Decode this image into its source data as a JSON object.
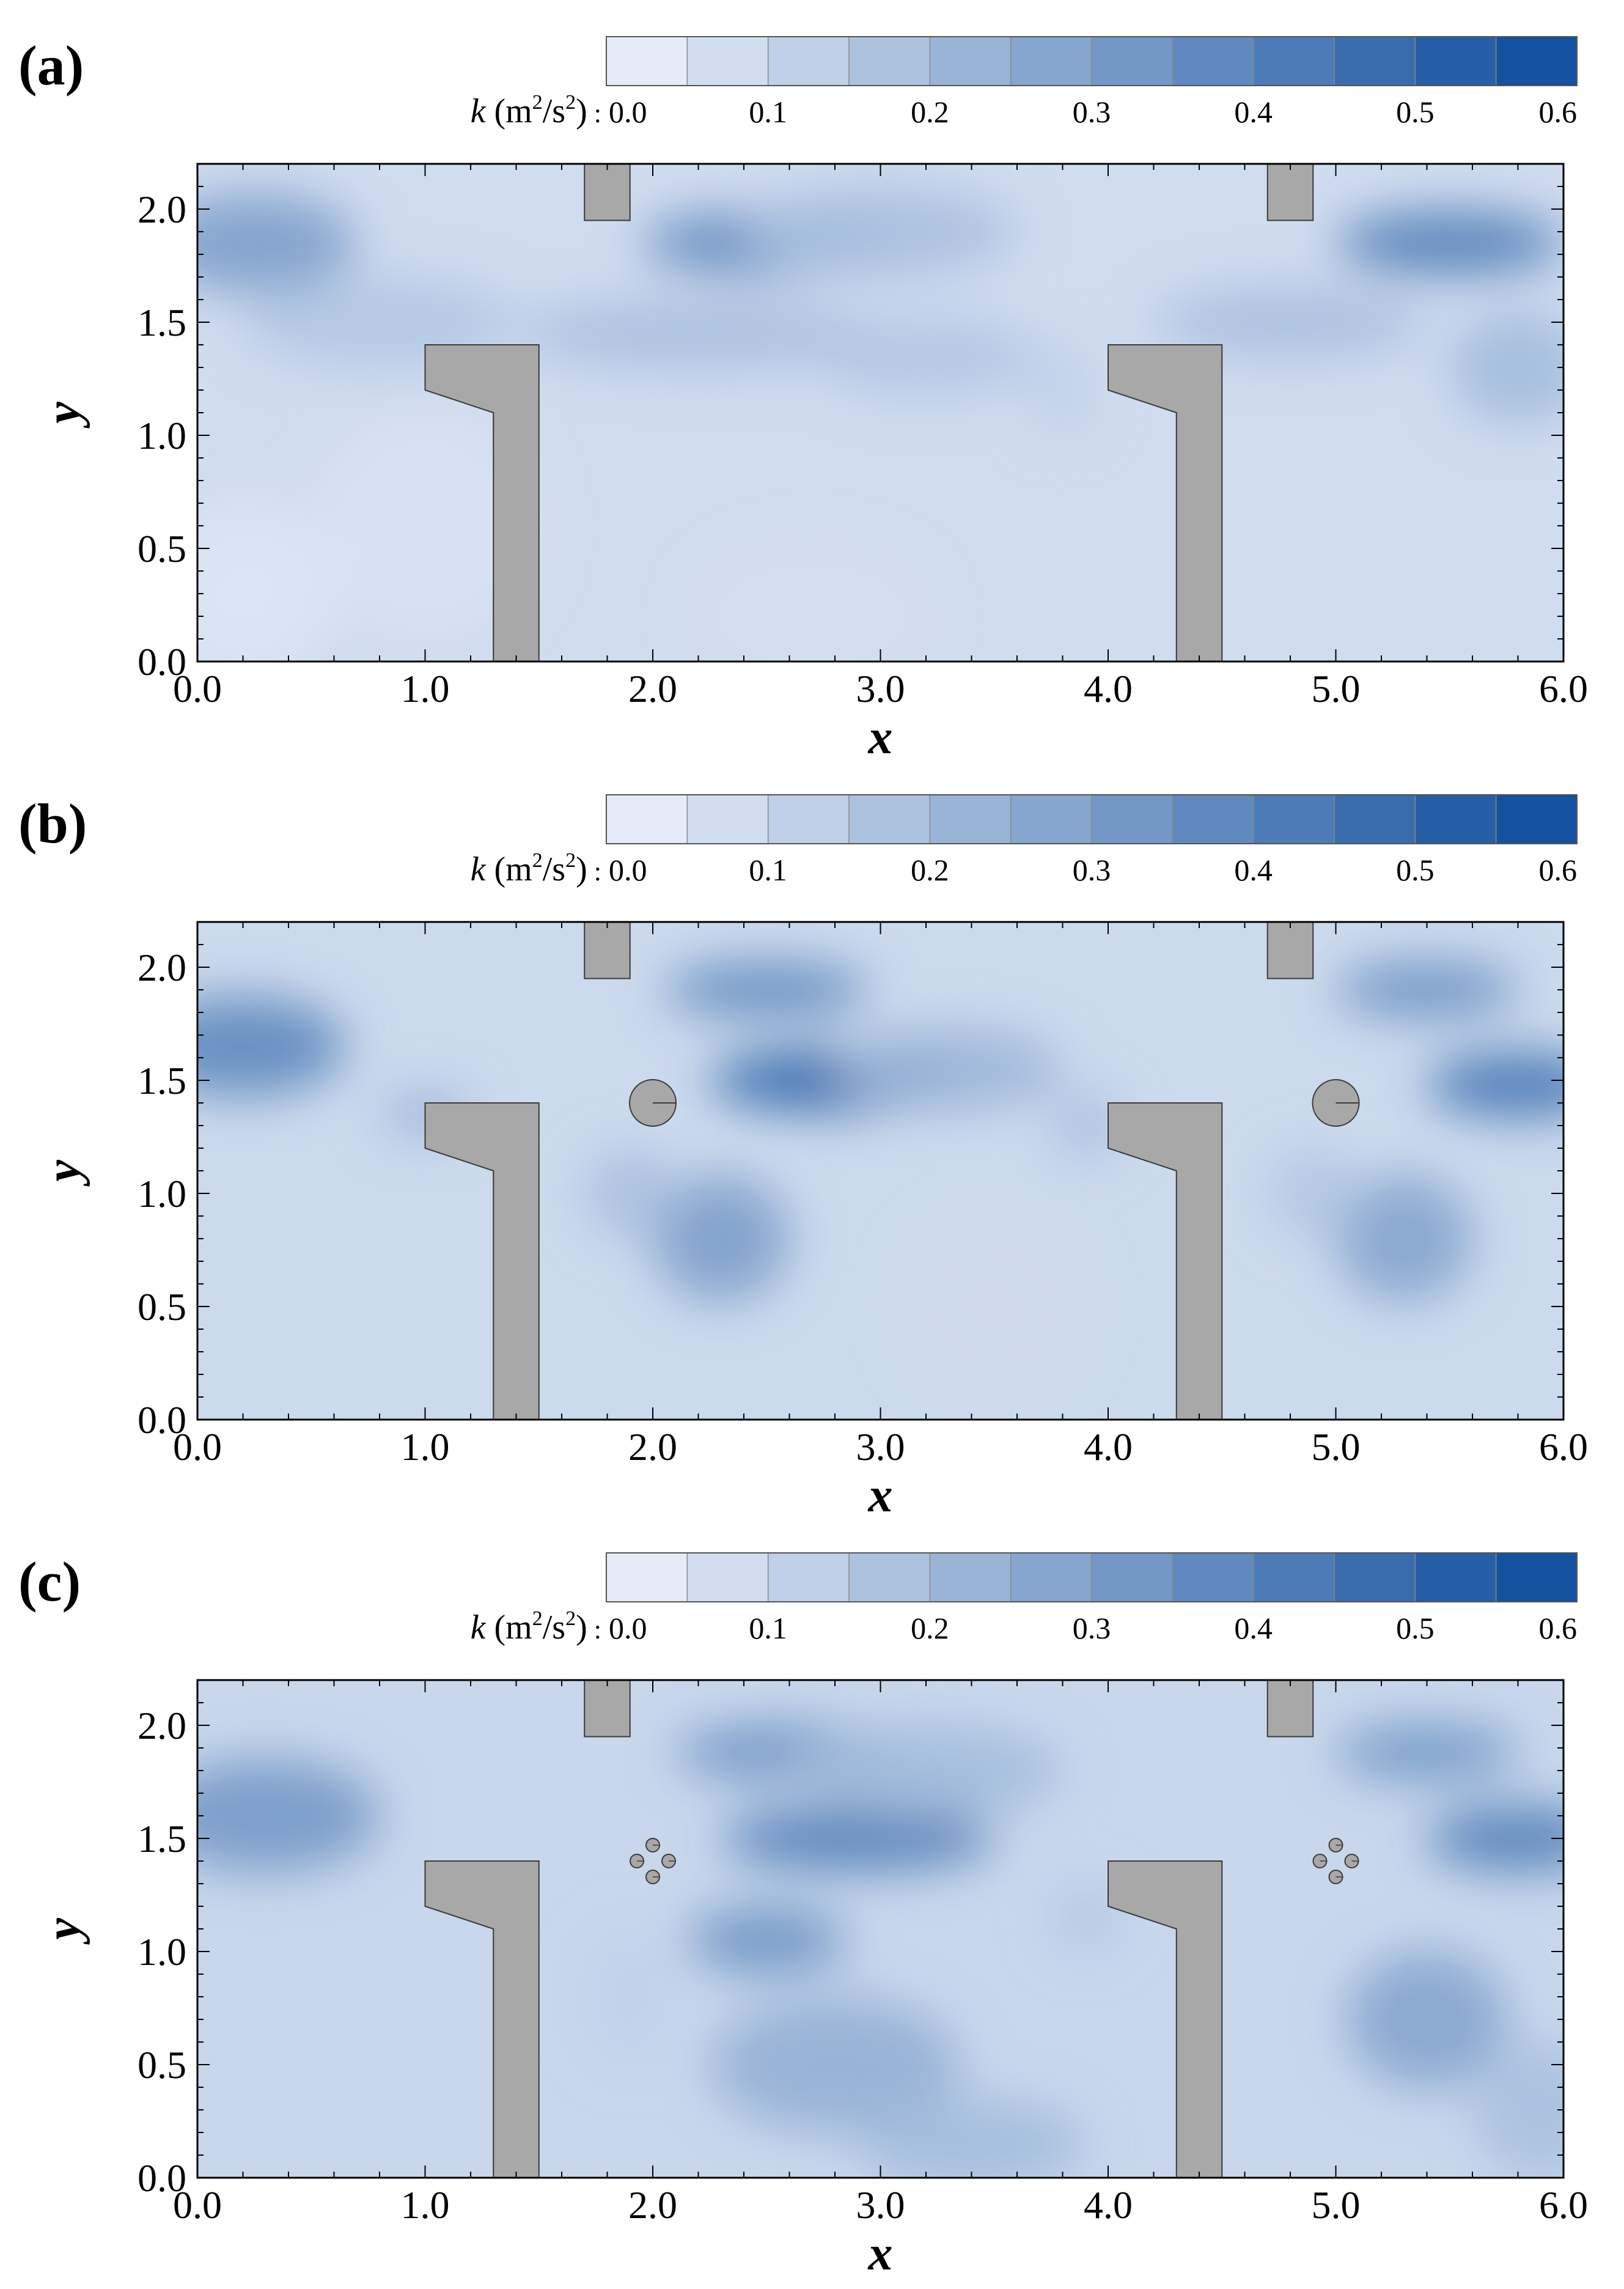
{
  "colors": {
    "cmap_low": "#eef3fc",
    "cmap_high": "#0b4a9a",
    "obstacle_fill": "#a8a8a8",
    "obstacle_stroke": "#3a3a3a",
    "axes": "#000000"
  },
  "chart_data": [
    {
      "type": "heatmap",
      "panel_label": "(a)",
      "colorbar": {
        "title": "k (m²/s²) :",
        "title_parts": {
          "symbol": "k",
          "unit_open": "(m",
          "unit_exp1": "2",
          "unit_mid": "/s",
          "unit_exp2": "2",
          "unit_close": ")",
          "sep": " :"
        },
        "range": [
          0.0,
          0.6
        ],
        "levels": 12,
        "ticks": [
          0.0,
          0.1,
          0.2,
          0.3,
          0.4,
          0.5,
          0.6
        ],
        "tick_labels": [
          "0.0",
          "0.1",
          "0.2",
          "0.3",
          "0.4",
          "0.5",
          "0.6"
        ]
      },
      "xlabel": "x",
      "ylabel": "y",
      "xlim": [
        0.0,
        6.0
      ],
      "ylim": [
        0.0,
        2.2
      ],
      "x_ticks": [
        "0.0",
        "1.0",
        "2.0",
        "3.0",
        "4.0",
        "5.0",
        "6.0"
      ],
      "y_ticks": [
        "0.0",
        "0.5",
        "1.0",
        "1.5",
        "2.0"
      ],
      "background_k": 0.08,
      "obstacles": {
        "groynes_x": [
          1.0,
          4.0
        ],
        "top_blocks_x": [
          1.7,
          4.7
        ],
        "device": "none",
        "device_x": []
      },
      "field_features": [
        {
          "x": 0.25,
          "y": 1.85,
          "k": 0.3,
          "sx": 0.45,
          "sy": 0.22
        },
        {
          "x": 0.8,
          "y": 1.5,
          "k": 0.16,
          "sx": 0.6,
          "sy": 0.2
        },
        {
          "x": 2.5,
          "y": 1.85,
          "k": 0.38,
          "sx": 0.55,
          "sy": 0.14
        },
        {
          "x": 3.0,
          "y": 1.9,
          "k": 0.18,
          "sx": 0.6,
          "sy": 0.2
        },
        {
          "x": 2.2,
          "y": 1.45,
          "k": 0.18,
          "sx": 0.8,
          "sy": 0.16
        },
        {
          "x": 3.2,
          "y": 1.35,
          "k": 0.16,
          "sx": 0.5,
          "sy": 0.18
        },
        {
          "x": 5.5,
          "y": 1.85,
          "k": 0.42,
          "sx": 0.5,
          "sy": 0.14
        },
        {
          "x": 5.8,
          "y": 1.3,
          "k": 0.2,
          "sx": 0.3,
          "sy": 0.25
        },
        {
          "x": 4.8,
          "y": 1.5,
          "k": 0.18,
          "sx": 0.6,
          "sy": 0.16
        },
        {
          "x": 3.8,
          "y": 1.2,
          "k": 0.12,
          "sx": 0.15,
          "sy": 0.2
        },
        {
          "x": 1.0,
          "y": 0.6,
          "k": 0.06,
          "sx": 0.5,
          "sy": 0.5
        },
        {
          "x": 2.7,
          "y": 0.2,
          "k": 0.07,
          "sx": 0.5,
          "sy": 0.3
        },
        {
          "x": 0.2,
          "y": 0.3,
          "k": 0.05,
          "sx": 0.4,
          "sy": 0.4
        }
      ]
    },
    {
      "type": "heatmap",
      "panel_label": "(b)",
      "colorbar": {
        "title": "k (m²/s²) :",
        "title_parts": {
          "symbol": "k",
          "unit_open": "(m",
          "unit_exp1": "2",
          "unit_mid": "/s",
          "unit_exp2": "2",
          "unit_close": ")",
          "sep": " :"
        },
        "range": [
          0.0,
          0.6
        ],
        "levels": 12,
        "ticks": [
          0.0,
          0.1,
          0.2,
          0.3,
          0.4,
          0.5,
          0.6
        ],
        "tick_labels": [
          "0.0",
          "0.1",
          "0.2",
          "0.3",
          "0.4",
          "0.5",
          "0.6"
        ]
      },
      "xlabel": "x",
      "ylabel": "y",
      "xlim": [
        0.0,
        6.0
      ],
      "ylim": [
        0.0,
        2.2
      ],
      "x_ticks": [
        "0.0",
        "1.0",
        "2.0",
        "3.0",
        "4.0",
        "5.0",
        "6.0"
      ],
      "y_ticks": [
        "0.0",
        "0.5",
        "1.0",
        "1.5",
        "2.0"
      ],
      "background_k": 0.09,
      "obstacles": {
        "groynes_x": [
          1.0,
          4.0
        ],
        "top_blocks_x": [
          1.7,
          4.7
        ],
        "device": "single_cylinder",
        "device_x": [
          2.0,
          5.0
        ]
      },
      "field_features": [
        {
          "x": 0.2,
          "y": 1.65,
          "k": 0.38,
          "sx": 0.45,
          "sy": 0.22
        },
        {
          "x": 2.5,
          "y": 1.9,
          "k": 0.38,
          "sx": 0.45,
          "sy": 0.12
        },
        {
          "x": 2.8,
          "y": 1.5,
          "k": 0.5,
          "sx": 0.55,
          "sy": 0.14
        },
        {
          "x": 3.3,
          "y": 1.55,
          "k": 0.22,
          "sx": 0.5,
          "sy": 0.18
        },
        {
          "x": 2.3,
          "y": 0.8,
          "k": 0.3,
          "sx": 0.3,
          "sy": 0.28
        },
        {
          "x": 1.9,
          "y": 1.0,
          "k": 0.18,
          "sx": 0.2,
          "sy": 0.2
        },
        {
          "x": 1.0,
          "y": 1.35,
          "k": 0.22,
          "sx": 0.2,
          "sy": 0.1
        },
        {
          "x": 5.4,
          "y": 1.9,
          "k": 0.36,
          "sx": 0.4,
          "sy": 0.12
        },
        {
          "x": 5.8,
          "y": 1.48,
          "k": 0.45,
          "sx": 0.4,
          "sy": 0.14
        },
        {
          "x": 5.3,
          "y": 0.8,
          "k": 0.28,
          "sx": 0.3,
          "sy": 0.28
        },
        {
          "x": 4.9,
          "y": 1.0,
          "k": 0.16,
          "sx": 0.2,
          "sy": 0.2
        },
        {
          "x": 3.9,
          "y": 1.3,
          "k": 0.18,
          "sx": 0.15,
          "sy": 0.15
        },
        {
          "x": 3.5,
          "y": 0.5,
          "k": 0.08,
          "sx": 0.4,
          "sy": 0.4
        }
      ]
    },
    {
      "type": "heatmap",
      "panel_label": "(c)",
      "colorbar": {
        "title": "k (m²/s²) :",
        "title_parts": {
          "symbol": "k",
          "unit_open": "(m",
          "unit_exp1": "2",
          "unit_mid": "/s",
          "unit_exp2": "2",
          "unit_close": ")",
          "sep": " :"
        },
        "range": [
          0.0,
          0.6
        ],
        "levels": 12,
        "ticks": [
          0.0,
          0.1,
          0.2,
          0.3,
          0.4,
          0.5,
          0.6
        ],
        "tick_labels": [
          "0.0",
          "0.1",
          "0.2",
          "0.3",
          "0.4",
          "0.5",
          "0.6"
        ]
      },
      "xlabel": "x",
      "ylabel": "y",
      "xlim": [
        0.0,
        6.0
      ],
      "ylim": [
        0.0,
        2.2
      ],
      "x_ticks": [
        "0.0",
        "1.0",
        "2.0",
        "3.0",
        "4.0",
        "5.0",
        "6.0"
      ],
      "y_ticks": [
        "0.0",
        "0.5",
        "1.0",
        "1.5",
        "2.0"
      ],
      "background_k": 0.1,
      "obstacles": {
        "groynes_x": [
          1.0,
          4.0
        ],
        "top_blocks_x": [
          1.7,
          4.7
        ],
        "device": "four_cylinders",
        "device_x": [
          2.0,
          5.0
        ]
      },
      "field_features": [
        {
          "x": 0.3,
          "y": 1.6,
          "k": 0.32,
          "sx": 0.5,
          "sy": 0.25
        },
        {
          "x": 2.6,
          "y": 1.88,
          "k": 0.36,
          "sx": 0.5,
          "sy": 0.12
        },
        {
          "x": 2.9,
          "y": 1.5,
          "k": 0.42,
          "sx": 0.6,
          "sy": 0.14
        },
        {
          "x": 3.2,
          "y": 1.8,
          "k": 0.2,
          "sx": 0.6,
          "sy": 0.2
        },
        {
          "x": 2.5,
          "y": 1.05,
          "k": 0.34,
          "sx": 0.35,
          "sy": 0.15
        },
        {
          "x": 2.8,
          "y": 0.5,
          "k": 0.24,
          "sx": 0.55,
          "sy": 0.3
        },
        {
          "x": 3.4,
          "y": 0.15,
          "k": 0.2,
          "sx": 0.5,
          "sy": 0.2
        },
        {
          "x": 1.9,
          "y": 0.8,
          "k": 0.12,
          "sx": 0.2,
          "sy": 0.3
        },
        {
          "x": 5.4,
          "y": 1.88,
          "k": 0.34,
          "sx": 0.4,
          "sy": 0.12
        },
        {
          "x": 5.8,
          "y": 1.5,
          "k": 0.42,
          "sx": 0.4,
          "sy": 0.14
        },
        {
          "x": 5.4,
          "y": 0.7,
          "k": 0.28,
          "sx": 0.35,
          "sy": 0.3
        },
        {
          "x": 5.9,
          "y": 0.3,
          "k": 0.18,
          "sx": 0.3,
          "sy": 0.3
        },
        {
          "x": 3.9,
          "y": 1.15,
          "k": 0.16,
          "sx": 0.15,
          "sy": 0.15
        }
      ]
    }
  ]
}
